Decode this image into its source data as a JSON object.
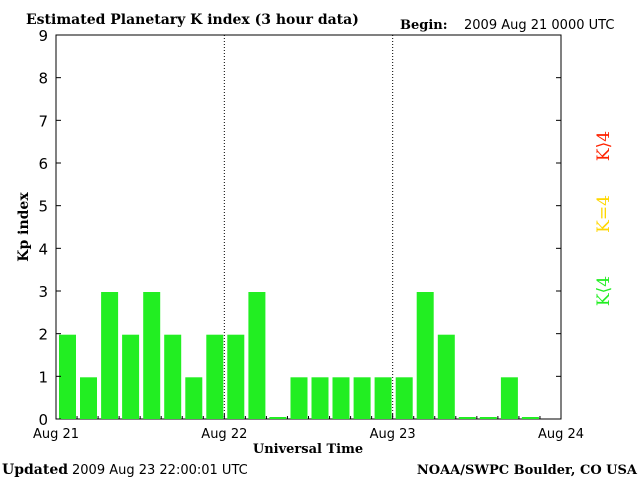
{
  "header": {
    "title": "Estimated Planetary K index (3 hour data)",
    "begin_label": "Begin:",
    "begin_value": "2009 Aug 21 0000 UTC"
  },
  "footer": {
    "updated_label": "Updated",
    "updated_value": "2009 Aug 23 22:00:01 UTC",
    "source": "NOAA/SWPC Boulder, CO USA"
  },
  "legend": {
    "below": "K⟨4",
    "equal": "K=4",
    "above": "K⟩4",
    "colors": {
      "below": "#22ee22",
      "equal": "#ffd700",
      "above": "#ff2200"
    }
  },
  "chart_data": {
    "type": "bar",
    "ylabel": "Kp index",
    "xlabel": "Universal Time",
    "ylim": [
      0,
      9
    ],
    "yticks": [
      0,
      1,
      2,
      3,
      4,
      5,
      6,
      7,
      8,
      9
    ],
    "x_tick_labels": [
      "Aug 21",
      "Aug 22",
      "Aug 23",
      "Aug 24"
    ],
    "bar_color": "#22ee22",
    "grid": "dotted vertical lines at day boundaries",
    "values": [
      2,
      1,
      3,
      2,
      3,
      2,
      1,
      2,
      2,
      3,
      0,
      1,
      1,
      1,
      1,
      1,
      1,
      3,
      2,
      0,
      0,
      1,
      0
    ]
  }
}
